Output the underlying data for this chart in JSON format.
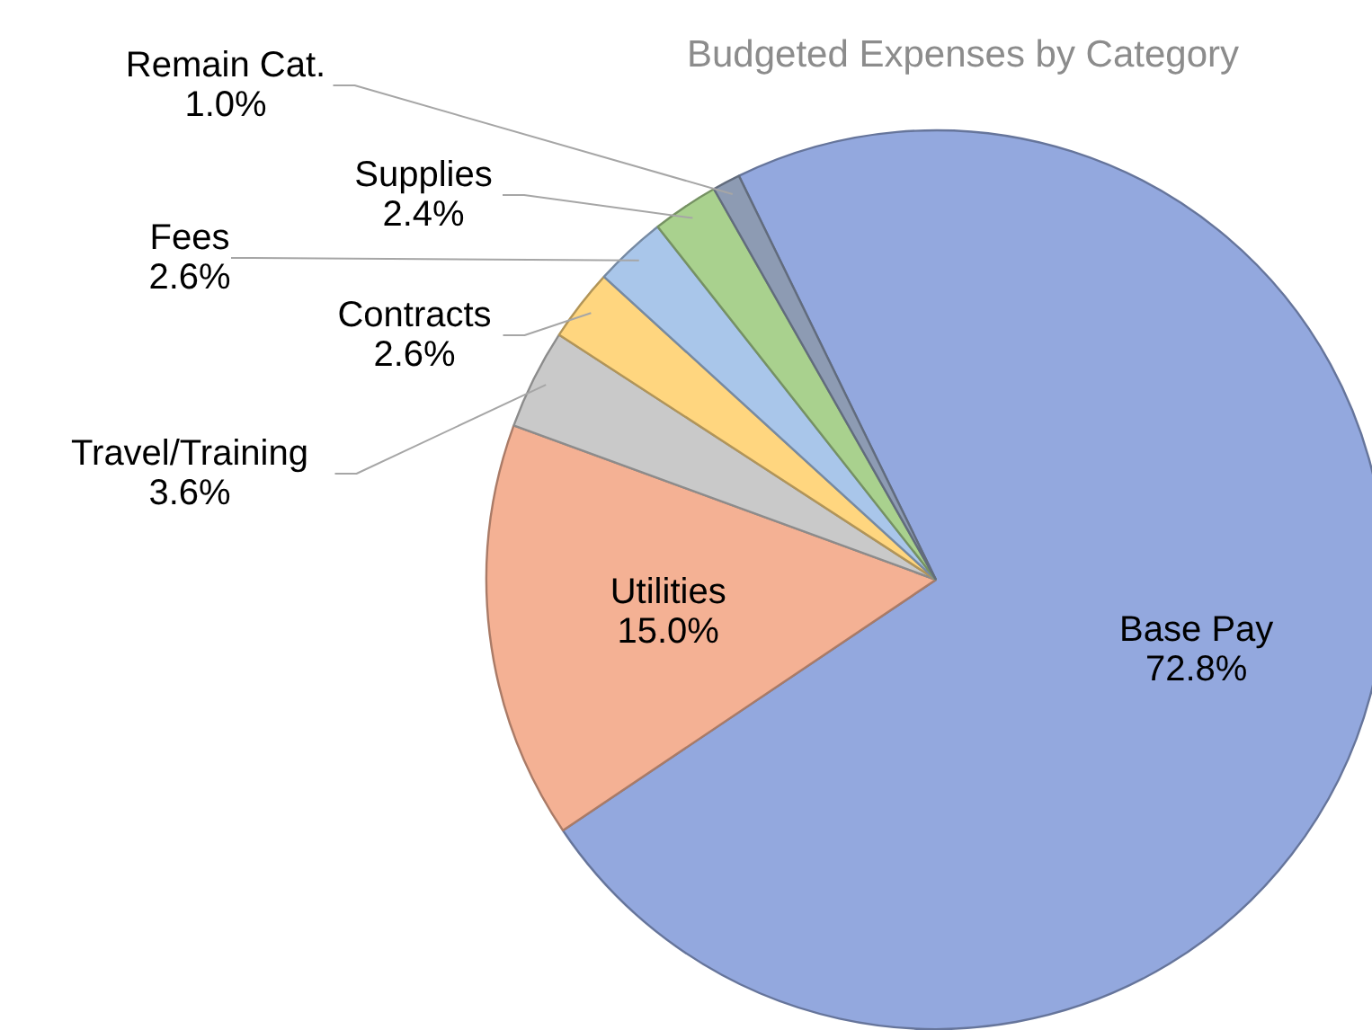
{
  "chart_data": {
    "type": "pie",
    "title": "Budgeted Expenses by Category",
    "categories": [
      "Base Pay",
      "Utilities",
      "Travel/Training",
      "Contracts",
      "Fees",
      "Supplies",
      "Remain Cat."
    ],
    "values": [
      72.8,
      15.0,
      3.6,
      2.6,
      2.6,
      2.4,
      1.0
    ],
    "value_labels": [
      "72.8%",
      "15.0%",
      "3.6%",
      "2.6%",
      "2.6%",
      "2.4%",
      "1.0%"
    ],
    "colors": [
      "#93a8de",
      "#f4b194",
      "#c9c9c9",
      "#ffd67f",
      "#a9c6ea",
      "#a9d18e",
      "#8d9bb3"
    ]
  }
}
